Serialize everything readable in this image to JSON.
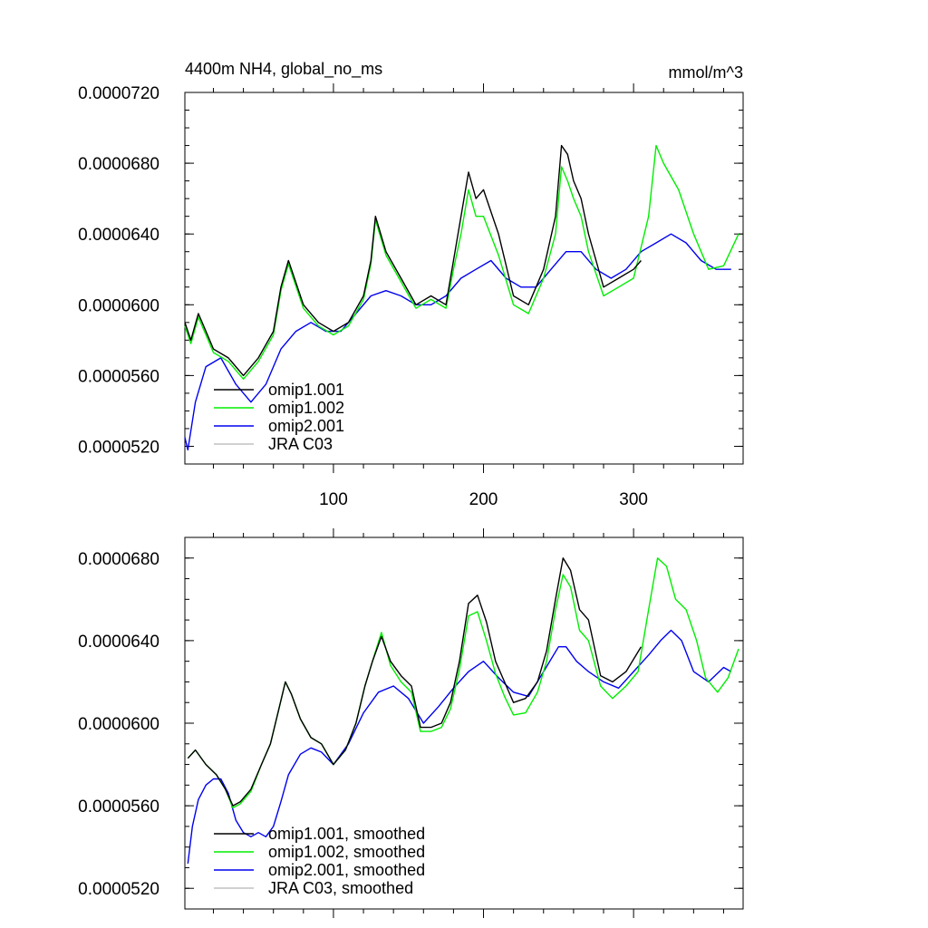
{
  "chart_data": [
    {
      "type": "line",
      "title_left": "4400m NH4, global_no_ms",
      "title_right": "mmol/m^3",
      "xlim": [
        1,
        373
      ],
      "ylim": [
        5.1e-05,
        7.2e-05
      ],
      "x_ticks": [
        100,
        200,
        300
      ],
      "x_tick_labels": [
        "100",
        "200",
        "300"
      ],
      "y_ticks": [
        5.2e-05,
        5.6e-05,
        6e-05,
        6.4e-05,
        6.8e-05,
        7.2e-05
      ],
      "y_tick_labels": [
        "0.0000520",
        "0.0000560",
        "0.0000600",
        "0.0000640",
        "0.0000680",
        "0.0000720"
      ],
      "legend_position": "bottom-left",
      "grid": false,
      "series": [
        {
          "name": "omip1.001",
          "color": "#000000",
          "x": [
            1,
            5,
            10,
            20,
            30,
            40,
            50,
            60,
            65,
            70,
            80,
            90,
            100,
            110,
            120,
            125,
            128,
            135,
            145,
            155,
            165,
            175,
            180,
            185,
            190,
            195,
            200,
            210,
            220,
            230,
            240,
            248,
            252,
            256,
            260,
            265,
            270,
            280,
            290,
            300,
            305
          ],
          "y": [
            5.9e-05,
            5.8e-05,
            5.95e-05,
            5.75e-05,
            5.7e-05,
            5.6e-05,
            5.7e-05,
            5.85e-05,
            6.1e-05,
            6.25e-05,
            6e-05,
            5.9e-05,
            5.85e-05,
            5.9e-05,
            6.05e-05,
            6.25e-05,
            6.5e-05,
            6.3e-05,
            6.15e-05,
            6e-05,
            6.05e-05,
            6e-05,
            6.25e-05,
            6.5e-05,
            6.75e-05,
            6.6e-05,
            6.65e-05,
            6.4e-05,
            6.05e-05,
            6e-05,
            6.2e-05,
            6.5e-05,
            6.9e-05,
            6.85e-05,
            6.7e-05,
            6.6e-05,
            6.4e-05,
            6.1e-05,
            6.15e-05,
            6.2e-05,
            6.25e-05
          ]
        },
        {
          "name": "omip1.002",
          "color": "#00ee00",
          "x": [
            1,
            5,
            10,
            20,
            30,
            40,
            50,
            60,
            65,
            70,
            80,
            90,
            100,
            110,
            120,
            125,
            128,
            135,
            145,
            155,
            165,
            175,
            180,
            185,
            190,
            195,
            200,
            210,
            220,
            230,
            240,
            248,
            252,
            256,
            260,
            265,
            270,
            280,
            290,
            300,
            310,
            315,
            320,
            330,
            340,
            350,
            360,
            370
          ],
          "y": [
            5.88e-05,
            5.78e-05,
            5.93e-05,
            5.73e-05,
            5.68e-05,
            5.58e-05,
            5.68e-05,
            5.83e-05,
            6.08e-05,
            6.23e-05,
            5.98e-05,
            5.88e-05,
            5.83e-05,
            5.88e-05,
            6.03e-05,
            6.23e-05,
            6.48e-05,
            6.28e-05,
            6.13e-05,
            5.98e-05,
            6.03e-05,
            5.98e-05,
            6.2e-05,
            6.4e-05,
            6.65e-05,
            6.5e-05,
            6.5e-05,
            6.28e-05,
            6e-05,
            5.95e-05,
            6.15e-05,
            6.4e-05,
            6.78e-05,
            6.7e-05,
            6.6e-05,
            6.5e-05,
            6.3e-05,
            6.05e-05,
            6.1e-05,
            6.15e-05,
            6.5e-05,
            6.9e-05,
            6.8e-05,
            6.65e-05,
            6.4e-05,
            6.2e-05,
            6.22e-05,
            6.4e-05
          ]
        },
        {
          "name": "omip2.001",
          "color": "#0000ee",
          "x": [
            1,
            3,
            8,
            15,
            25,
            35,
            45,
            55,
            65,
            75,
            85,
            95,
            105,
            115,
            125,
            135,
            145,
            155,
            165,
            175,
            185,
            195,
            205,
            215,
            225,
            235,
            245,
            255,
            265,
            275,
            285,
            295,
            305,
            315,
            325,
            335,
            345,
            355,
            365
          ],
          "y": [
            5.25e-05,
            5.18e-05,
            5.45e-05,
            5.65e-05,
            5.7e-05,
            5.55e-05,
            5.45e-05,
            5.55e-05,
            5.75e-05,
            5.85e-05,
            5.9e-05,
            5.85e-05,
            5.85e-05,
            5.95e-05,
            6.05e-05,
            6.08e-05,
            6.05e-05,
            6e-05,
            6e-05,
            6.05e-05,
            6.15e-05,
            6.2e-05,
            6.25e-05,
            6.15e-05,
            6.1e-05,
            6.1e-05,
            6.2e-05,
            6.3e-05,
            6.3e-05,
            6.2e-05,
            6.15e-05,
            6.2e-05,
            6.3e-05,
            6.35e-05,
            6.4e-05,
            6.35e-05,
            6.25e-05,
            6.2e-05,
            6.2e-05
          ]
        },
        {
          "name": "JRA C03",
          "color": "#c0c0c0",
          "x": [],
          "y": []
        }
      ]
    },
    {
      "type": "line",
      "xlim": [
        1,
        373
      ],
      "ylim": [
        5.1e-05,
        6.9e-05
      ],
      "x_ticks": [
        100,
        200,
        300
      ],
      "y_ticks": [
        5.2e-05,
        5.6e-05,
        6e-05,
        6.4e-05,
        6.8e-05
      ],
      "y_tick_labels": [
        "0.0000520",
        "0.0000560",
        "0.0000600",
        "0.0000640",
        "0.0000680"
      ],
      "legend_position": "bottom-left",
      "grid": false,
      "series": [
        {
          "name": "omip1.001, smoothed",
          "color": "#000000",
          "x": [
            3,
            8,
            15,
            22,
            28,
            33,
            38,
            45,
            52,
            58,
            63,
            68,
            72,
            78,
            85,
            92,
            100,
            108,
            115,
            121,
            126,
            132,
            138,
            145,
            152,
            158,
            165,
            172,
            178,
            184,
            190,
            196,
            202,
            208,
            214,
            220,
            228,
            236,
            242,
            248,
            253,
            258,
            264,
            270,
            278,
            286,
            295,
            305
          ],
          "y": [
            5.83e-05,
            5.87e-05,
            5.8e-05,
            5.75e-05,
            5.68e-05,
            5.6e-05,
            5.62e-05,
            5.68e-05,
            5.8e-05,
            5.9e-05,
            6.05e-05,
            6.2e-05,
            6.14e-05,
            6.02e-05,
            5.93e-05,
            5.9e-05,
            5.8e-05,
            5.87e-05,
            6e-05,
            6.18e-05,
            6.3e-05,
            6.42e-05,
            6.3e-05,
            6.23e-05,
            6.18e-05,
            5.98e-05,
            5.98e-05,
            6e-05,
            6.1e-05,
            6.3e-05,
            6.58e-05,
            6.62e-05,
            6.49e-05,
            6.3e-05,
            6.2e-05,
            6.1e-05,
            6.12e-05,
            6.2e-05,
            6.35e-05,
            6.6e-05,
            6.8e-05,
            6.74e-05,
            6.55e-05,
            6.5e-05,
            6.23e-05,
            6.2e-05,
            6.25e-05,
            6.37e-05
          ]
        },
        {
          "name": "omip1.002, smoothed",
          "color": "#00ee00",
          "x": [
            3,
            8,
            15,
            22,
            28,
            33,
            38,
            45,
            52,
            58,
            63,
            68,
            72,
            78,
            85,
            92,
            100,
            108,
            115,
            121,
            126,
            132,
            138,
            145,
            152,
            158,
            165,
            172,
            178,
            184,
            190,
            196,
            202,
            208,
            214,
            220,
            228,
            236,
            242,
            248,
            253,
            258,
            264,
            270,
            278,
            286,
            295,
            303,
            310,
            316,
            322,
            328,
            335,
            342,
            348,
            356,
            363,
            370
          ],
          "y": [
            5.83e-05,
            5.87e-05,
            5.8e-05,
            5.75e-05,
            5.68e-05,
            5.59e-05,
            5.61e-05,
            5.67e-05,
            5.8e-05,
            5.9e-05,
            6.05e-05,
            6.2e-05,
            6.14e-05,
            6.02e-05,
            5.93e-05,
            5.9e-05,
            5.8e-05,
            5.87e-05,
            6e-05,
            6.18e-05,
            6.3e-05,
            6.44e-05,
            6.28e-05,
            6.2e-05,
            6.15e-05,
            5.96e-05,
            5.96e-05,
            5.98e-05,
            6.07e-05,
            6.26e-05,
            6.52e-05,
            6.54e-05,
            6.4e-05,
            6.24e-05,
            6.13e-05,
            6.04e-05,
            6.05e-05,
            6.15e-05,
            6.3e-05,
            6.55e-05,
            6.72e-05,
            6.66e-05,
            6.45e-05,
            6.4e-05,
            6.18e-05,
            6.12e-05,
            6.18e-05,
            6.25e-05,
            6.55e-05,
            6.8e-05,
            6.76e-05,
            6.6e-05,
            6.55e-05,
            6.4e-05,
            6.22e-05,
            6.15e-05,
            6.22e-05,
            6.36e-05
          ]
        },
        {
          "name": "omip2.001, smoothed",
          "color": "#0000ee",
          "x": [
            3,
            6,
            10,
            15,
            20,
            25,
            30,
            35,
            40,
            45,
            50,
            55,
            60,
            65,
            70,
            78,
            85,
            92,
            100,
            110,
            120,
            130,
            140,
            150,
            160,
            170,
            180,
            190,
            200,
            210,
            220,
            230,
            240,
            250,
            255,
            262,
            270,
            280,
            290,
            300,
            310,
            318,
            325,
            332,
            340,
            350,
            360,
            365
          ],
          "y": [
            5.32e-05,
            5.5e-05,
            5.63e-05,
            5.7e-05,
            5.73e-05,
            5.73e-05,
            5.66e-05,
            5.53e-05,
            5.47e-05,
            5.45e-05,
            5.47e-05,
            5.45e-05,
            5.5e-05,
            5.62e-05,
            5.75e-05,
            5.85e-05,
            5.88e-05,
            5.86e-05,
            5.8e-05,
            5.9e-05,
            6.05e-05,
            6.15e-05,
            6.18e-05,
            6.12e-05,
            6e-05,
            6.08e-05,
            6.17e-05,
            6.25e-05,
            6.3e-05,
            6.22e-05,
            6.15e-05,
            6.13e-05,
            6.25e-05,
            6.37e-05,
            6.37e-05,
            6.3e-05,
            6.25e-05,
            6.2e-05,
            6.17e-05,
            6.25e-05,
            6.33e-05,
            6.4e-05,
            6.45e-05,
            6.4e-05,
            6.25e-05,
            6.2e-05,
            6.27e-05,
            6.25e-05
          ]
        },
        {
          "name": "JRA C03, smoothed",
          "color": "#c0c0c0",
          "x": [],
          "y": []
        }
      ]
    }
  ]
}
